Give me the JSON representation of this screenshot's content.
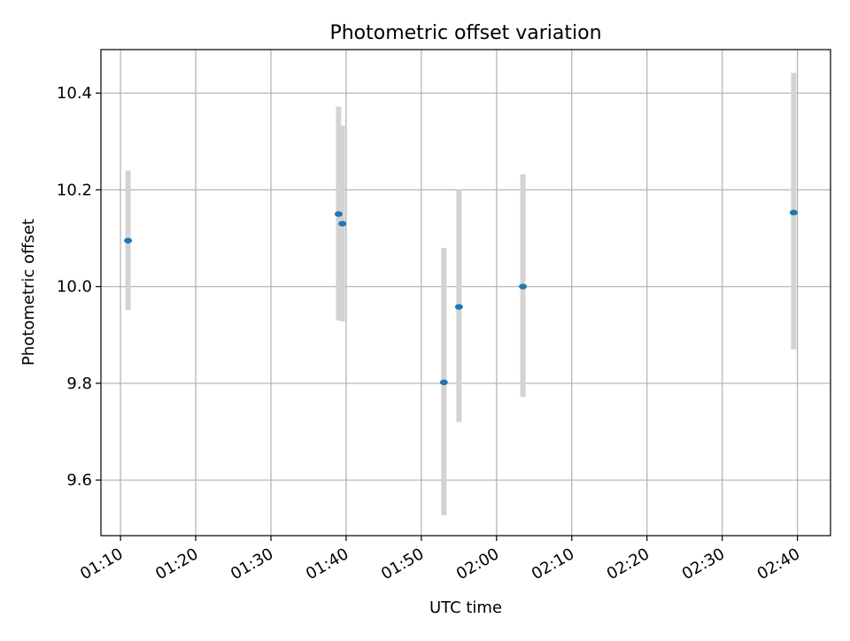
{
  "chart_data": {
    "type": "scatter",
    "title": "Photometric offset variation",
    "xlabel": "UTC time",
    "ylabel": "Photometric offset",
    "x_tick_labels": [
      "01:10",
      "01:20",
      "01:30",
      "01:40",
      "01:50",
      "02:00",
      "02:10",
      "02:20",
      "02:30",
      "02:40"
    ],
    "x_tick_minutes": [
      70,
      80,
      90,
      100,
      110,
      120,
      130,
      140,
      150,
      160
    ],
    "xlim_minutes": [
      67.4,
      164.4
    ],
    "y_ticks": [
      9.6,
      9.8,
      10.0,
      10.2,
      10.4
    ],
    "y_tick_labels": [
      "9.6",
      "9.8",
      "10.0",
      "10.2",
      "10.4"
    ],
    "ylim": [
      9.485,
      10.49
    ],
    "grid": true,
    "legend": "none",
    "series": [
      {
        "x": [
          "01:11",
          "01:39",
          "01:39.5",
          "01:53",
          "01:55",
          "02:03.5",
          "02:39.5"
        ],
        "x_minutes": [
          71.0,
          99.0,
          99.5,
          113.0,
          115.0,
          123.5,
          159.5
        ],
        "y": [
          10.095,
          10.15,
          10.13,
          9.802,
          9.958,
          10.0,
          10.153
        ],
        "error_low": [
          9.952,
          9.93,
          9.928,
          9.527,
          9.72,
          9.772,
          9.87
        ],
        "error_high": [
          10.24,
          10.372,
          10.333,
          10.08,
          10.2,
          10.232,
          10.442
        ]
      }
    ],
    "colors": {
      "marker": "#1f77b4",
      "errorbar": "#d3d3d3",
      "grid": "#b0b0b0",
      "axis": "#000000"
    }
  }
}
